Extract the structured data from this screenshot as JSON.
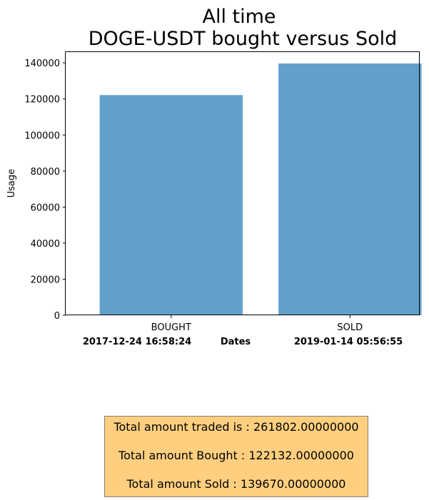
{
  "chart_data": {
    "type": "bar",
    "title": "All time\nDOGE-USDT bought versus Sold",
    "title_lines": [
      "All time",
      "DOGE-USDT bought versus Sold"
    ],
    "xlabel": "Dates",
    "ylabel": "Usage",
    "categories": [
      "BOUGHT",
      "SOLD"
    ],
    "values": [
      122132,
      139670
    ],
    "ylim": [
      0,
      146000
    ],
    "yticks": [
      0,
      20000,
      40000,
      60000,
      80000,
      100000,
      120000,
      140000
    ],
    "xlabel_left": "2017-12-24 16:58:24",
    "xlabel_right": "2019-01-14 05:56:55",
    "bar_color": "#62a0cb",
    "grid": false,
    "legend": "none"
  },
  "summary": {
    "traded": "Total amount traded is : 261802.00000000",
    "bought": "Total amount Bought : 122132.00000000",
    "sold": "Total amount Sold : 139670.00000000",
    "background": "#ffcf7f"
  }
}
